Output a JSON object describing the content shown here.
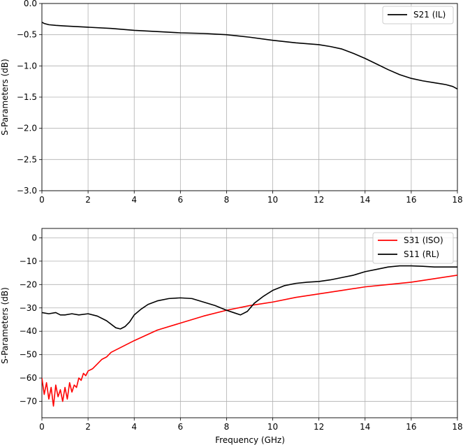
{
  "colors": {
    "black": "#000000",
    "red": "#ff0000",
    "grid": "#b0b0b0",
    "legend_edge": "#cccccc"
  },
  "chart_data": [
    {
      "type": "line",
      "title": "",
      "xlabel": "",
      "ylabel": "S-Parameters (dB)",
      "xlim": [
        0,
        18
      ],
      "ylim": [
        -3.0,
        0.0
      ],
      "xticks": [
        0,
        2,
        4,
        6,
        8,
        10,
        12,
        14,
        16,
        18
      ],
      "xtick_labels": [
        "0",
        "2",
        "4",
        "6",
        "8",
        "10",
        "12",
        "14",
        "16",
        "18"
      ],
      "yticks": [
        0.0,
        -0.5,
        -1.0,
        -1.5,
        -2.0,
        -2.5,
        -3.0
      ],
      "ytick_labels": [
        "0.0",
        "−0.5",
        "−1.0",
        "−1.5",
        "−2.0",
        "−2.5",
        "−3.0"
      ],
      "grid": true,
      "legend_position": "upper-right",
      "series": [
        {
          "name": "S21 (IL)",
          "color": "#000000",
          "x": [
            0,
            0.1,
            0.3,
            0.6,
            1,
            2,
            3,
            4,
            5,
            6,
            7,
            8,
            9,
            10,
            11,
            12,
            12.5,
            13,
            13.5,
            14,
            14.5,
            15,
            15.5,
            16,
            16.5,
            17,
            17.5,
            17.8,
            18
          ],
          "y": [
            -0.3,
            -0.32,
            -0.34,
            -0.35,
            -0.36,
            -0.38,
            -0.4,
            -0.43,
            -0.45,
            -0.47,
            -0.48,
            -0.5,
            -0.54,
            -0.59,
            -0.63,
            -0.66,
            -0.69,
            -0.73,
            -0.8,
            -0.88,
            -0.97,
            -1.06,
            -1.14,
            -1.2,
            -1.24,
            -1.27,
            -1.3,
            -1.33,
            -1.37
          ]
        }
      ]
    },
    {
      "type": "line",
      "title": "",
      "xlabel": "Frequency (GHz)",
      "ylabel": "S-Parameters (dB)",
      "xlim": [
        0,
        18
      ],
      "ylim": [
        -77,
        4
      ],
      "xticks": [
        0,
        2,
        4,
        6,
        8,
        10,
        12,
        14,
        16,
        18
      ],
      "xtick_labels": [
        "0",
        "2",
        "4",
        "6",
        "8",
        "10",
        "12",
        "14",
        "16",
        "18"
      ],
      "yticks": [
        0,
        -10,
        -20,
        -30,
        -40,
        -50,
        -60,
        -70
      ],
      "ytick_labels": [
        "0",
        "−10",
        "−20",
        "−30",
        "−40",
        "−50",
        "−60",
        "−70"
      ],
      "grid": true,
      "legend_position": "upper-right",
      "series": [
        {
          "name": "S31 (ISO)",
          "color": "#ff0000",
          "x": [
            0,
            0.1,
            0.2,
            0.3,
            0.4,
            0.5,
            0.6,
            0.7,
            0.8,
            0.9,
            1.0,
            1.1,
            1.2,
            1.3,
            1.4,
            1.5,
            1.6,
            1.7,
            1.8,
            1.9,
            2.0,
            2.2,
            2.4,
            2.6,
            2.8,
            3.0,
            3.5,
            4.0,
            5.0,
            6.0,
            7.0,
            8.0,
            9.0,
            10.0,
            11.0,
            12.0,
            13.0,
            14.0,
            15.0,
            16.0,
            17.0,
            18.0
          ],
          "y": [
            -60,
            -67,
            -62,
            -69,
            -64,
            -72,
            -63,
            -68,
            -65,
            -70,
            -64,
            -69,
            -62,
            -66,
            -63,
            -64,
            -60,
            -61,
            -58,
            -59,
            -57,
            -56,
            -54,
            -52,
            -51,
            -49,
            -46.5,
            -44,
            -39.5,
            -36.5,
            -33.5,
            -31,
            -29,
            -27.5,
            -25.5,
            -24,
            -22.5,
            -21,
            -20,
            -19,
            -17.5,
            -16
          ]
        },
        {
          "name": "S11 (RL)",
          "color": "#000000",
          "x": [
            0,
            0.3,
            0.6,
            0.8,
            1.0,
            1.3,
            1.6,
            2.0,
            2.4,
            2.8,
            3.2,
            3.4,
            3.6,
            3.8,
            4.0,
            4.3,
            4.6,
            5.0,
            5.5,
            6.0,
            6.5,
            7.0,
            7.5,
            8.0,
            8.3,
            8.6,
            8.9,
            9.2,
            9.6,
            10.0,
            10.5,
            11.0,
            11.5,
            12.0,
            12.5,
            13.0,
            13.5,
            14.0,
            14.5,
            15.0,
            15.5,
            16.0,
            16.5,
            17.0,
            17.5,
            18.0
          ],
          "y": [
            -32,
            -32.5,
            -32,
            -33,
            -33,
            -32.5,
            -33,
            -32.5,
            -33.5,
            -35.5,
            -38.5,
            -39,
            -38,
            -36,
            -33,
            -30.5,
            -28.5,
            -27,
            -26,
            -25.7,
            -26,
            -27.5,
            -29,
            -31,
            -32,
            -33,
            -31.5,
            -28,
            -25,
            -22.5,
            -20.5,
            -19.5,
            -19,
            -18.7,
            -18,
            -17,
            -16,
            -14.5,
            -13.5,
            -12.5,
            -12,
            -12,
            -12.2,
            -12.5,
            -12.5,
            -12.5
          ]
        }
      ]
    }
  ]
}
